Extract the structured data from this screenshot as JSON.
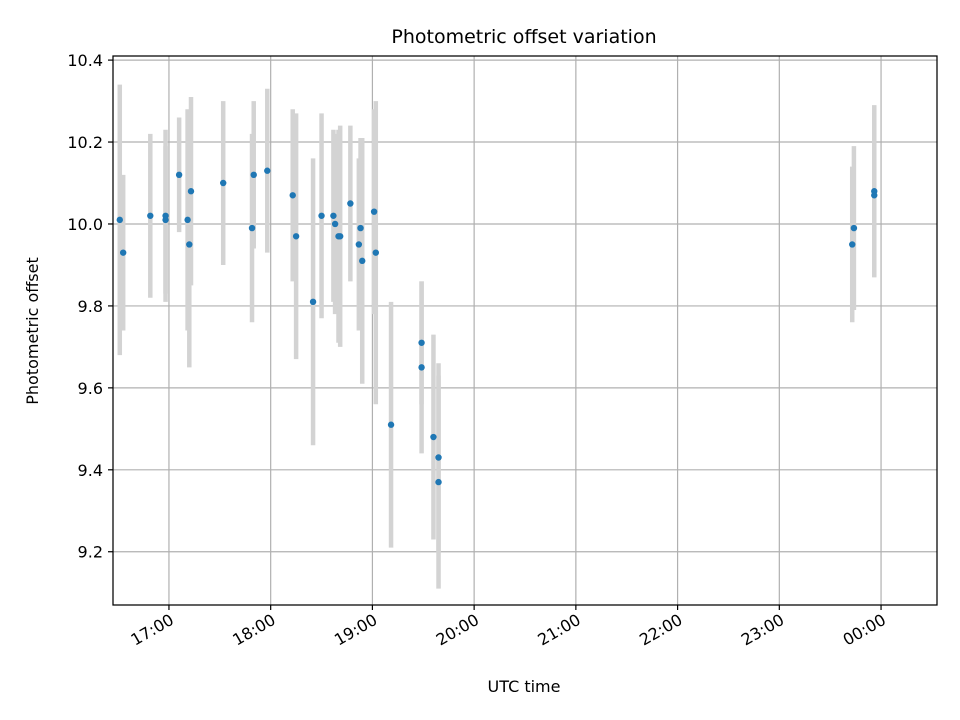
{
  "chart_data": {
    "type": "scatter",
    "title": "Photometric offset variation",
    "xlabel": "UTC time",
    "ylabel": "Photometric offset",
    "x_is_time": true,
    "xlim": [
      "16:27",
      "00:33"
    ],
    "ylim": [
      9.07,
      10.41
    ],
    "xticks": [
      "17:00",
      "18:00",
      "19:00",
      "20:00",
      "21:00",
      "22:00",
      "23:00",
      "00:00"
    ],
    "yticks": [
      9.2,
      9.4,
      9.6,
      9.8,
      10.0,
      10.2,
      10.4
    ],
    "ytick_labels": [
      "9.2",
      "9.4",
      "9.6",
      "9.8",
      "10.0",
      "10.2",
      "10.4"
    ],
    "grid": true,
    "colors": {
      "points": "#1f77b4",
      "errorbars": "#d3d3d3",
      "grid": "#b0b0b0"
    },
    "series": [
      {
        "points": [
          {
            "x": "16:31",
            "y": 10.01,
            "err": 0.33
          },
          {
            "x": "16:33",
            "y": 9.93,
            "err": 0.19
          },
          {
            "x": "16:49",
            "y": 10.02,
            "err": 0.2
          },
          {
            "x": "16:58",
            "y": 10.02,
            "err": 0.21
          },
          {
            "x": "16:58",
            "y": 10.01,
            "err": 0.18
          },
          {
            "x": "17:06",
            "y": 10.12,
            "err": 0.14
          },
          {
            "x": "17:11",
            "y": 10.01,
            "err": 0.27
          },
          {
            "x": "17:12",
            "y": 9.95,
            "err": 0.3
          },
          {
            "x": "17:13",
            "y": 10.08,
            "err": 0.23
          },
          {
            "x": "17:32",
            "y": 10.1,
            "err": 0.2
          },
          {
            "x": "17:49",
            "y": 9.99,
            "err": 0.23
          },
          {
            "x": "17:50",
            "y": 10.12,
            "err": 0.18
          },
          {
            "x": "17:58",
            "y": 10.13,
            "err": 0.2
          },
          {
            "x": "18:13",
            "y": 10.07,
            "err": 0.21
          },
          {
            "x": "18:15",
            "y": 9.97,
            "err": 0.3
          },
          {
            "x": "18:25",
            "y": 9.81,
            "err": 0.35
          },
          {
            "x": "18:30",
            "y": 10.02,
            "err": 0.25
          },
          {
            "x": "18:37",
            "y": 10.02,
            "err": 0.21
          },
          {
            "x": "18:38",
            "y": 10.0,
            "err": 0.22
          },
          {
            "x": "18:40",
            "y": 9.97,
            "err": 0.26
          },
          {
            "x": "18:41",
            "y": 9.97,
            "err": 0.27
          },
          {
            "x": "18:47",
            "y": 10.05,
            "err": 0.19
          },
          {
            "x": "18:52",
            "y": 9.95,
            "err": 0.21
          },
          {
            "x": "18:53",
            "y": 9.99,
            "err": 0.22
          },
          {
            "x": "18:54",
            "y": 9.91,
            "err": 0.3
          },
          {
            "x": "19:01",
            "y": 10.03,
            "err": 0.25
          },
          {
            "x": "19:02",
            "y": 9.93,
            "err": 0.37
          },
          {
            "x": "19:11",
            "y": 9.51,
            "err": 0.3
          },
          {
            "x": "19:29",
            "y": 9.71,
            "err": 0.15
          },
          {
            "x": "19:29",
            "y": 9.65,
            "err": 0.21
          },
          {
            "x": "19:36",
            "y": 9.48,
            "err": 0.25
          },
          {
            "x": "19:39",
            "y": 9.43,
            "err": 0.23
          },
          {
            "x": "19:39",
            "y": 9.37,
            "err": 0.26
          },
          {
            "x": "23:43",
            "y": 9.95,
            "err": 0.19
          },
          {
            "x": "23:44",
            "y": 9.99,
            "err": 0.2
          },
          {
            "x": "23:56",
            "y": 10.07,
            "err": 0.2
          },
          {
            "x": "23:56",
            "y": 10.08,
            "err": 0.21
          }
        ]
      }
    ]
  }
}
